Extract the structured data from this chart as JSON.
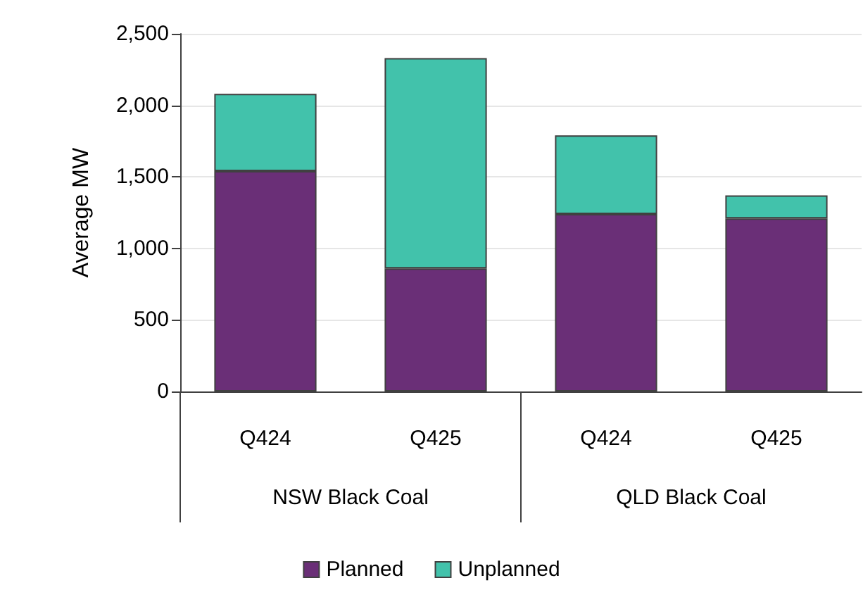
{
  "chart_data": {
    "type": "bar",
    "ylabel": "Average MW",
    "categories": [
      "Q424",
      "Q425",
      "Q424",
      "Q425"
    ],
    "series": [
      {
        "name": "Planned",
        "color": "#6a2f77",
        "values": [
          1540,
          860,
          1240,
          1210
        ]
      },
      {
        "name": "Unplanned",
        "color": "#42c2ab",
        "values": [
          540,
          1470,
          550,
          160
        ]
      }
    ],
    "stacked": true,
    "ylim": [
      0,
      2500
    ],
    "yticks": [
      0,
      500,
      {
        "value": 1000,
        "label": "1,000"
      },
      {
        "value": 1500,
        "label": "1,500"
      },
      {
        "value": 2000,
        "label": "2,000"
      },
      {
        "value": 2500,
        "label": "2,500"
      }
    ],
    "grid": "y",
    "legend": "bottom",
    "annotations": [
      "NSW Black Coal",
      "QLD Black Coal"
    ]
  }
}
